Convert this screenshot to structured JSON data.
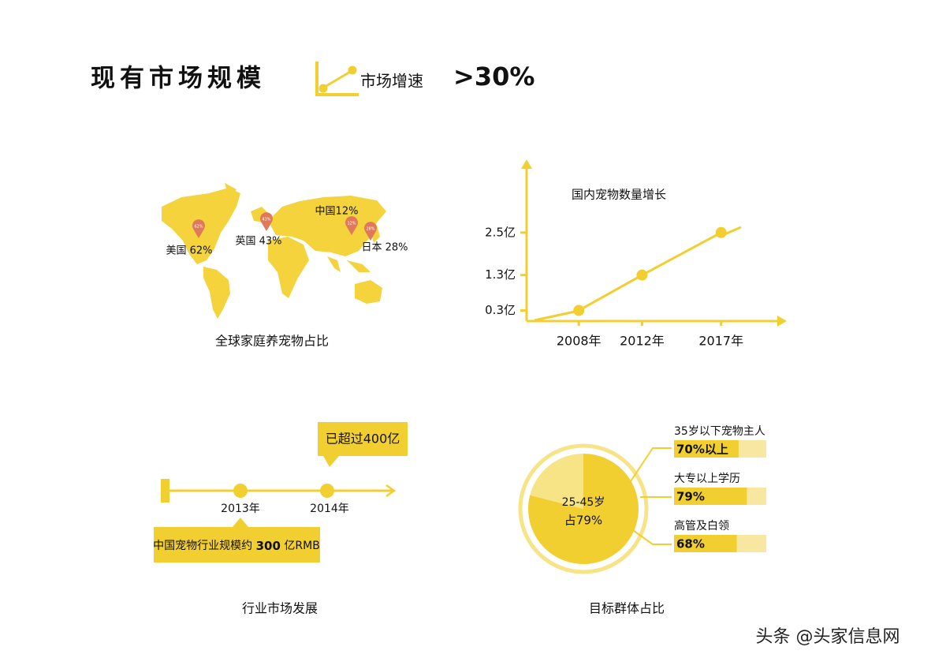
{
  "header": {
    "title": "现有市场规模",
    "subtitle": "市场增速",
    "highlight": ">30%"
  },
  "map": {
    "caption": "全球家庭养宠物占比",
    "markers": [
      {
        "label": "美国 62%",
        "pin": "62%"
      },
      {
        "label": "英国 43%",
        "pin": "43%"
      },
      {
        "label": "中国12%",
        "pin": "12%"
      },
      {
        "label": "日本 28%",
        "pin": "28%"
      }
    ]
  },
  "growth": {
    "type": "line",
    "title": "国内宠物数量增长",
    "color": "#f2cf30",
    "x": [
      2008,
      2012,
      2017
    ],
    "values": [
      0.3,
      1.3,
      2.5
    ],
    "xlim": [
      2004.7,
      2021
    ],
    "ylim": [
      0,
      4.5
    ],
    "xticks": [
      {
        "value": 2008,
        "label": "2008年"
      },
      {
        "value": 2012,
        "label": "2012年"
      },
      {
        "value": 2017,
        "label": "2017年"
      }
    ],
    "yticks": [
      {
        "value": 0.3,
        "label": "0.3亿"
      },
      {
        "value": 1.3,
        "label": "1.3亿"
      },
      {
        "value": 2.5,
        "label": "2.5亿"
      }
    ]
  },
  "timeline": {
    "caption": "行业市场发展",
    "events": [
      {
        "year": "2013年",
        "note": [
          "中国宠物行业规模约",
          "300",
          "亿RMB"
        ]
      },
      {
        "year": "2014年",
        "note": [
          "已超过400亿"
        ]
      }
    ]
  },
  "audience": {
    "caption": "目标群体占比",
    "pie": {
      "values": [
        79,
        21
      ],
      "colors": [
        "#f2cf30",
        "#f7e486"
      ],
      "center_label": "25-45岁",
      "center_value_label": "占79%"
    },
    "bars": [
      {
        "label": "35岁以下宠物主人",
        "value": 70,
        "value_label": "70%以上"
      },
      {
        "label": "大专以上学历",
        "value": 79,
        "value_label": "79%"
      },
      {
        "label": "高管及白领",
        "value": 68,
        "value_label": "68%"
      }
    ]
  },
  "watermark": "头条 @头家信息网"
}
